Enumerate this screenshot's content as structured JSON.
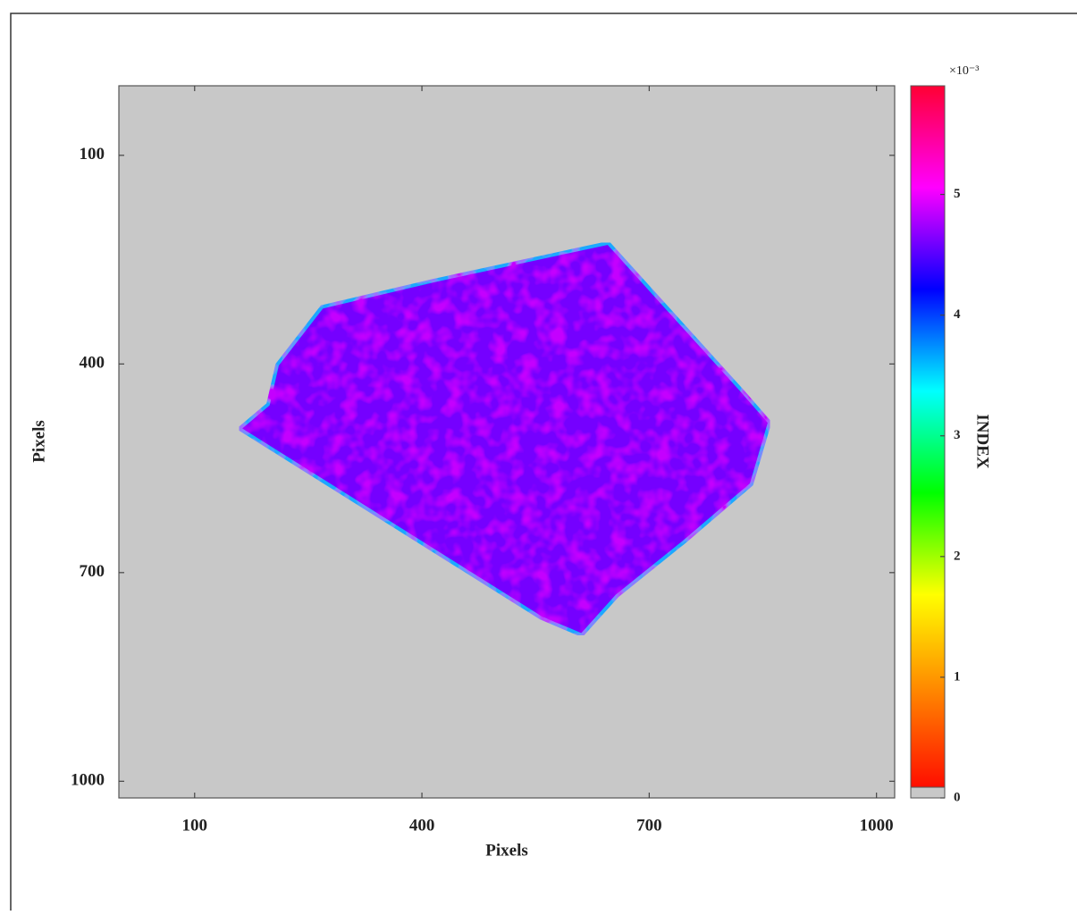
{
  "chart_data": {
    "type": "heatmap",
    "xlabel": "Pixels",
    "ylabel": "Pixels",
    "xlim": [
      0,
      1024
    ],
    "ylim": [
      0,
      1024
    ],
    "y_reversed": true,
    "xticks": [
      100,
      400,
      700,
      1000
    ],
    "yticks": [
      100,
      400,
      700,
      1000
    ],
    "background": "#c8c8c8",
    "region": {
      "x": [
        159,
        197,
        209,
        268,
        416,
        646,
        823,
        859,
        835,
        746,
        658,
        611,
        557
      ],
      "y": [
        493,
        458,
        401,
        318,
        280,
        226,
        439,
        484,
        573,
        656,
        733,
        790,
        765
      ],
      "value": 4.6
    },
    "colorbar": {
      "label": "INDEX",
      "scale_label": "×10⁻³",
      "clim": [
        0,
        5.9
      ],
      "ticks": [
        0,
        1,
        2,
        3,
        4,
        5
      ],
      "colormap": [
        "#ff0000",
        "#ff8000",
        "#ffff00",
        "#00ff00",
        "#00ffff",
        "#0000ff",
        "#ff00ff",
        "#ff0033"
      ],
      "nan_color": "#c8c8c8"
    }
  }
}
